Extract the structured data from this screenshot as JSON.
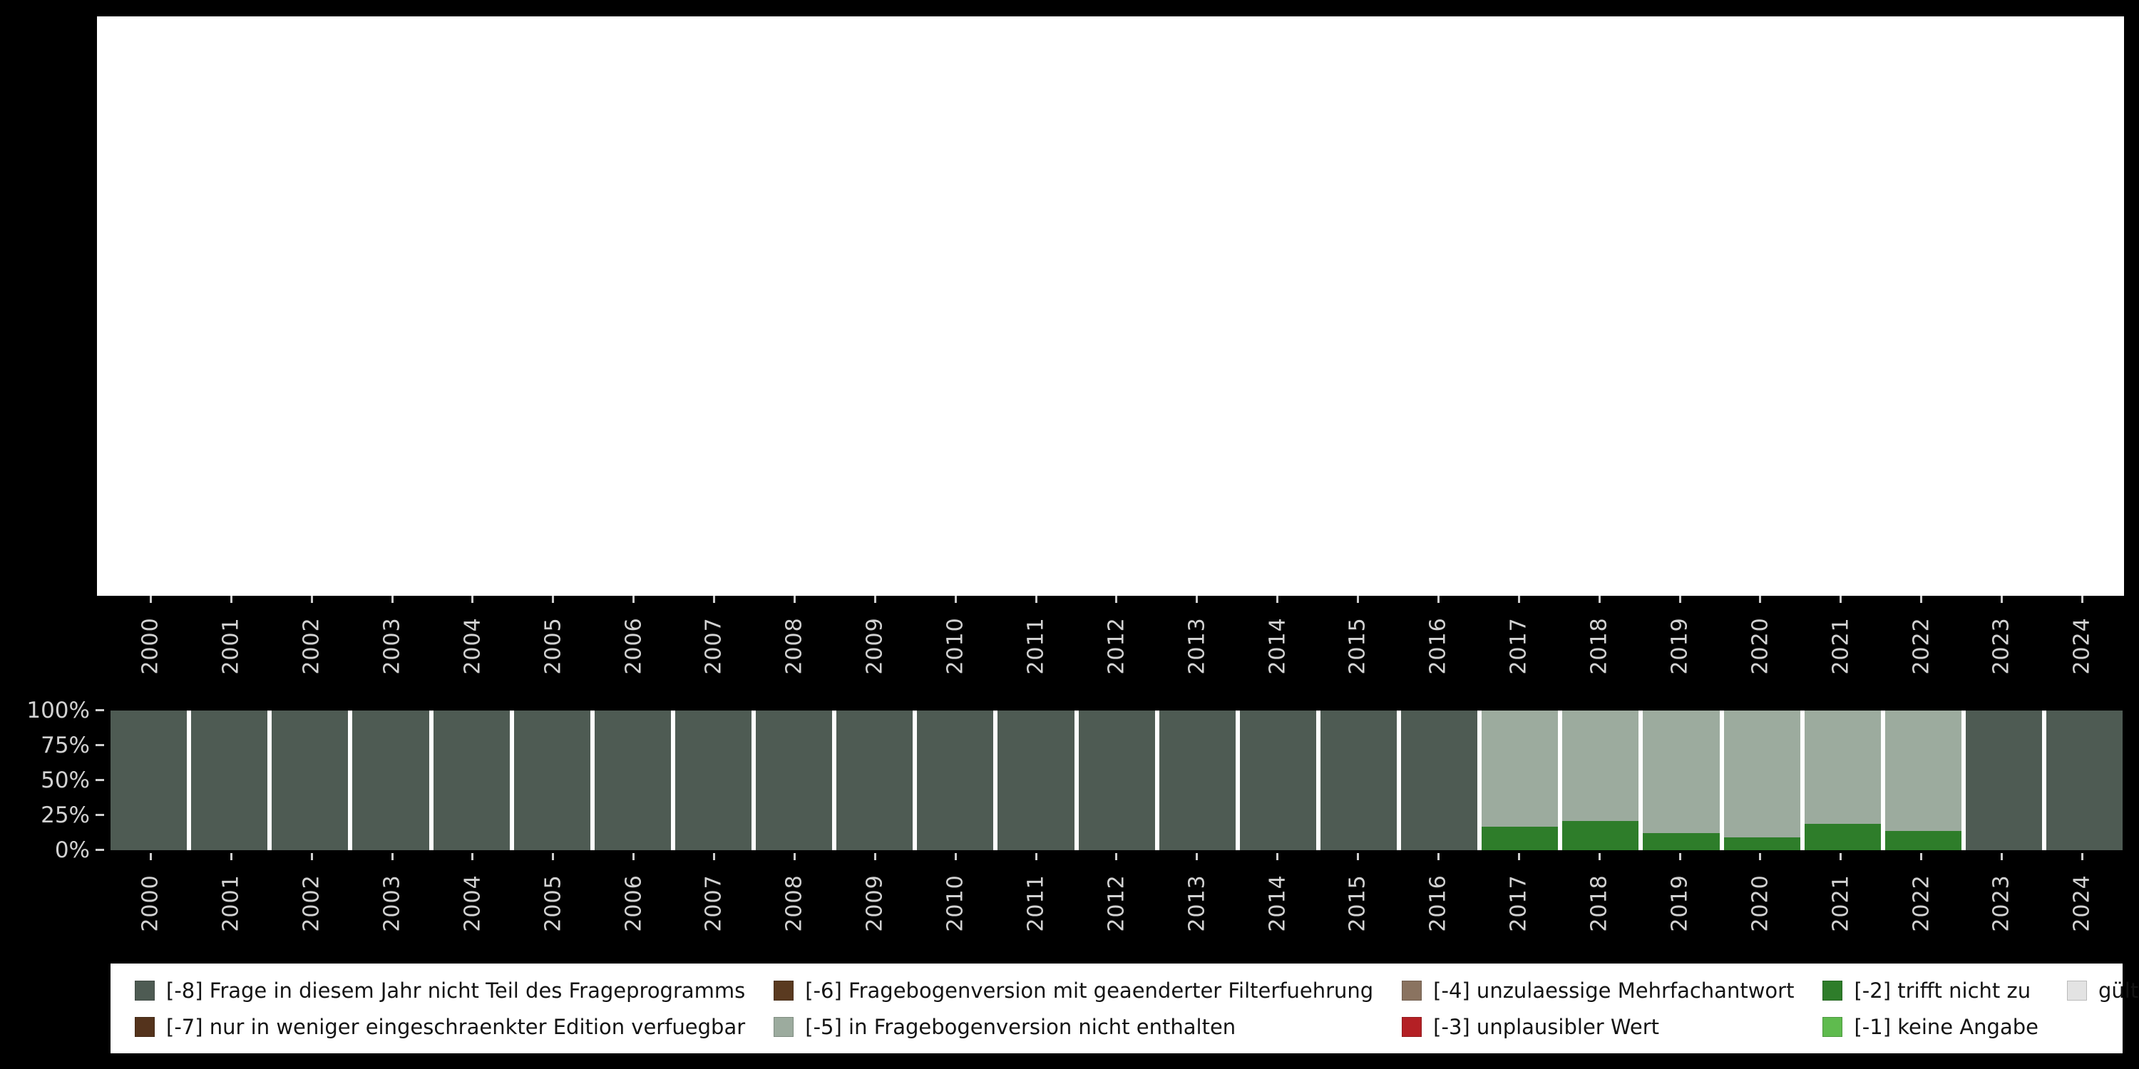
{
  "colors": {
    "background": "#000000",
    "panel": "#ffffff",
    "axis_text": "#d2d2d2",
    "tick": "#cfcfcf",
    "legend_background": "#ffffff",
    "legend_text": "#141414"
  },
  "legend": {
    "items": [
      {
        "code": "-8",
        "label": "[-8] Frage in diesem Jahr nicht Teil des Frageprogramms",
        "color": "#4e5b53"
      },
      {
        "code": "-7",
        "label": "[-7] nur in weniger eingeschraenkter Edition verfuegbar",
        "color": "#54331c"
      },
      {
        "code": "-6",
        "label": "[-6] Fragebogenversion mit geaenderter Filterfuehrung",
        "color": "#5a3a20"
      },
      {
        "code": "-5",
        "label": "[-5] in Fragebogenversion nicht enthalten",
        "color": "#9cab9e"
      },
      {
        "code": "-4",
        "label": "[-4] unzulaessige Mehrfachantwort",
        "color": "#8a7360"
      },
      {
        "code": "-3",
        "label": "[-3] unplausibler Wert",
        "color": "#b42025"
      },
      {
        "code": "-2",
        "label": "[-2] trifft nicht zu",
        "color": "#2e7d2a"
      },
      {
        "code": "-1",
        "label": "[-1] keine Angabe",
        "color": "#5fbb4e"
      },
      {
        "code": "valid",
        "label": "gültige Observationen",
        "color": "#e3e3e3"
      }
    ]
  },
  "chart_data": {
    "type": "bar",
    "stacked": true,
    "unit": "percent",
    "title": "",
    "xlabel": "",
    "ylabel": "",
    "ylim": [
      0,
      100
    ],
    "y_ticks": [
      "100%",
      "75%",
      "50%",
      "25%",
      "0%"
    ],
    "x": [
      "2000",
      "2001",
      "2002",
      "2003",
      "2004",
      "2005",
      "2006",
      "2007",
      "2008",
      "2009",
      "2010",
      "2011",
      "2012",
      "2013",
      "2014",
      "2015",
      "2016",
      "2017",
      "2018",
      "2019",
      "2020",
      "2021",
      "2022",
      "2023",
      "2024"
    ],
    "series": [
      {
        "name": "[-8] Frage in diesem Jahr nicht Teil des Frageprogramms",
        "code": "-8",
        "color": "#4e5b53",
        "values": [
          100,
          100,
          100,
          100,
          100,
          100,
          100,
          100,
          100,
          100,
          100,
          100,
          100,
          100,
          100,
          100,
          100,
          0,
          0,
          0,
          0,
          0,
          0,
          100,
          100
        ]
      },
      {
        "name": "[-5] in Fragebogenversion nicht enthalten",
        "code": "-5",
        "color": "#9cab9e",
        "values": [
          0,
          0,
          0,
          0,
          0,
          0,
          0,
          0,
          0,
          0,
          0,
          0,
          0,
          0,
          0,
          0,
          0,
          83,
          79,
          88,
          91,
          81,
          86,
          0,
          0
        ]
      },
      {
        "name": "[-2] trifft nicht zu",
        "code": "-2",
        "color": "#2e7d2a",
        "values": [
          0,
          0,
          0,
          0,
          0,
          0,
          0,
          0,
          0,
          0,
          0,
          0,
          0,
          0,
          0,
          0,
          0,
          17,
          21,
          12,
          9,
          19,
          14,
          0,
          0
        ]
      }
    ]
  }
}
